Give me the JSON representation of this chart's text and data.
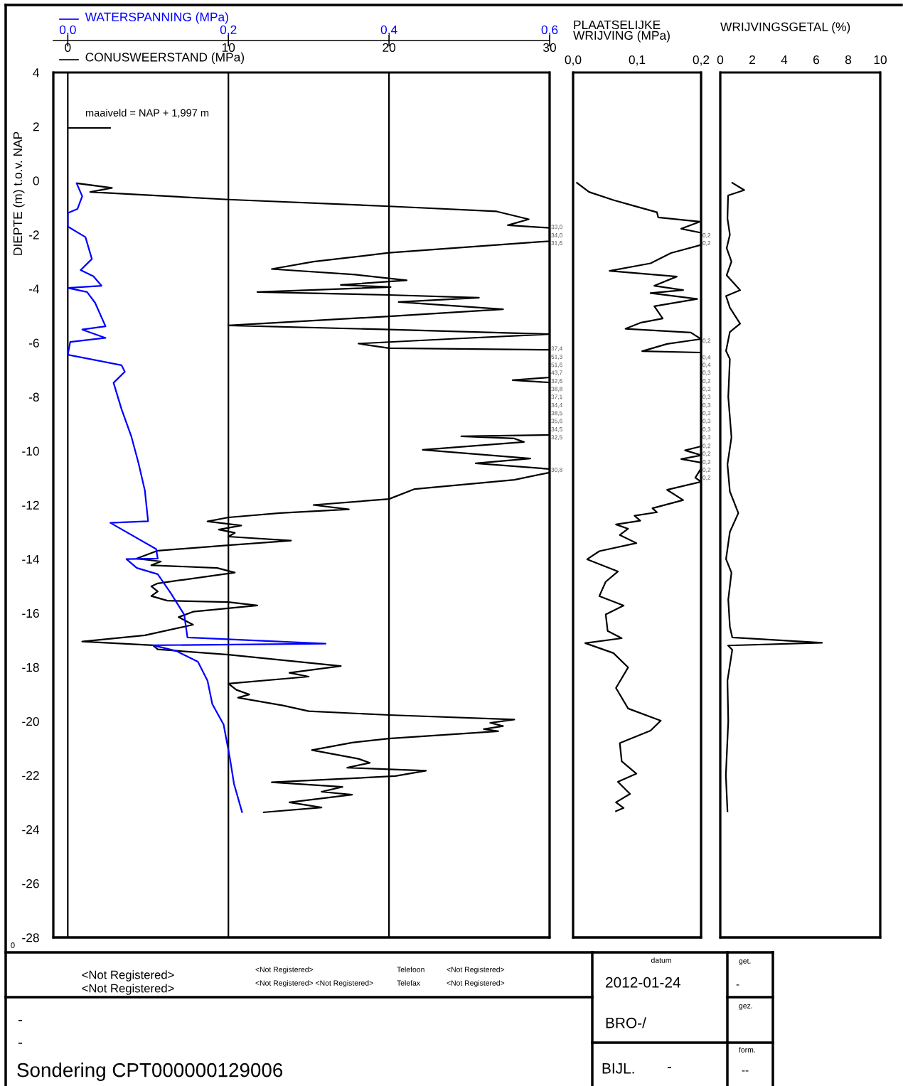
{
  "chart_data": [
    {
      "type": "line",
      "xlabel": "CONUSWEERSTAND (MPa)",
      "x2label": "WATERSPANNING (MPa)",
      "ylabel": "DIEPTE (m) t.o.v. NAP",
      "xlim": [
        -0.9,
        30
      ],
      "xticks": [
        0,
        10,
        20,
        30
      ],
      "x2lim": [
        -0.018,
        0.6
      ],
      "x2ticks": [
        {
          "value": 0,
          "label": "0,0"
        },
        {
          "value": 0.2,
          "label": "0,2"
        },
        {
          "value": 0.4,
          "label": "0,4"
        },
        {
          "value": 0.6,
          "label": "0,6"
        }
      ],
      "ylim": [
        -28,
        4
      ],
      "yticks": [
        4,
        2,
        0,
        -2,
        -4,
        -6,
        -8,
        -10,
        -12,
        -14,
        -16,
        -18,
        -20,
        -22,
        -24,
        -26,
        -28
      ],
      "grid": "x",
      "series": [
        {
          "color": "#000000",
          "x": [
            0.6,
            2.75,
            1.4,
            10,
            20,
            26.7,
            28.7,
            27.4,
            30,
            30,
            20,
            15.3,
            12.7,
            17.9,
            21.1,
            17.0,
            20.1,
            11.8,
            20,
            25.6,
            20.6,
            27.1,
            20,
            10,
            20,
            30,
            23.7,
            18.1,
            20,
            30,
            30,
            27.7,
            30,
            30,
            24.5,
            27.8,
            28.4,
            22.1,
            28.8,
            25.4,
            30,
            30,
            27.8,
            21.6,
            20,
            15.3,
            17.5,
            13.2,
            10,
            8.7,
            10.8,
            9.4,
            10.4,
            10,
            13.9,
            10,
            5.6,
            4.3,
            5.8,
            5.2,
            9.3,
            10.4,
            5.6,
            5.2,
            5.6,
            5.2,
            6.2,
            10,
            11.8,
            7.8,
            6.9,
            7.8,
            4.8,
            0.9,
            5.3,
            5.6,
            10,
            17.0,
            13.8,
            15.0,
            10,
            10.5,
            11.3,
            10.6,
            13.4,
            15.0,
            20,
            27.8,
            26.3,
            27.1,
            25.9,
            26.8,
            20,
            17.7,
            15.2,
            18.1,
            18.8,
            17.4,
            22.3,
            20.4,
            12.7,
            17.1,
            15.8,
            17.7,
            13.8,
            15.8,
            12.2
          ],
          "values": [
            -0.1,
            -0.27,
            -0.42,
            -0.7,
            -0.95,
            -1.14,
            -1.43,
            -1.65,
            -1.75,
            -2.24,
            -2.67,
            -3.0,
            -3.27,
            -3.48,
            -3.69,
            -3.86,
            -3.94,
            -4.12,
            -4.23,
            -4.33,
            -4.49,
            -4.76,
            -5.02,
            -5.36,
            -5.51,
            -5.68,
            -5.86,
            -6.03,
            -6.2,
            -6.26,
            -7.28,
            -7.38,
            -7.47,
            -9.41,
            -9.46,
            -9.54,
            -9.67,
            -9.96,
            -10.28,
            -10.46,
            -10.67,
            -10.8,
            -11.07,
            -11.41,
            -11.78,
            -12.0,
            -12.16,
            -12.3,
            -12.46,
            -12.61,
            -12.76,
            -12.91,
            -13.03,
            -13.17,
            -13.32,
            -13.49,
            -13.69,
            -13.98,
            -14.09,
            -14.23,
            -14.33,
            -14.5,
            -14.9,
            -15.01,
            -15.2,
            -15.37,
            -15.54,
            -15.59,
            -15.72,
            -15.95,
            -16.15,
            -16.43,
            -16.82,
            -17.05,
            -17.19,
            -17.34,
            -17.54,
            -17.96,
            -18.21,
            -18.35,
            -18.61,
            -18.84,
            -19.01,
            -19.13,
            -19.42,
            -19.63,
            -19.77,
            -19.94,
            -20.06,
            -20.18,
            -20.29,
            -20.37,
            -20.64,
            -20.79,
            -21.07,
            -21.39,
            -21.54,
            -21.72,
            -21.83,
            -22.03,
            -22.26,
            -22.43,
            -22.61,
            -22.72,
            -23.0,
            -23.19,
            -23.37
          ]
        },
        {
          "color": "#0000ff",
          "axis": "x2",
          "x": [
            0.011,
            0.018,
            0.012,
            0.0,
            0.0,
            0.022,
            0.03,
            0.016,
            0.032,
            0.042,
            0.0,
            0.024,
            0.034,
            0.047,
            0.018,
            0.047,
            0.003,
            0.0,
            0.067,
            0.071,
            0.057,
            0.067,
            0.079,
            0.088,
            0.096,
            0.1,
            0.053,
            0.11,
            0.112,
            0.073,
            0.086,
            0.112,
            0.128,
            0.145,
            0.149,
            0.321,
            0.106,
            0.135,
            0.162,
            0.174,
            0.18,
            0.194,
            0.202,
            0.207,
            0.217
          ],
          "values": [
            -0.1,
            -0.58,
            -1.05,
            -1.2,
            -1.7,
            -2.09,
            -2.9,
            -3.31,
            -3.54,
            -3.89,
            -3.97,
            -4.12,
            -4.52,
            -5.39,
            -5.51,
            -5.82,
            -5.97,
            -6.44,
            -6.83,
            -7.07,
            -7.48,
            -8.46,
            -9.45,
            -10.44,
            -11.47,
            -12.6,
            -12.66,
            -13.63,
            -13.98,
            -14.0,
            -14.33,
            -14.56,
            -15.25,
            -16.06,
            -16.9,
            -17.13,
            -17.19,
            -17.4,
            -17.8,
            -18.5,
            -19.37,
            -20.12,
            -21.39,
            -22.32,
            -23.36
          ]
        }
      ],
      "annotations": [
        "maaiveld = NAP + 1,997 m",
        "33,0",
        "34,0",
        "31,6",
        "37,4",
        "51,3",
        "51,6",
        "43,7",
        "32,6",
        "38,8",
        "37,1",
        "34,4",
        "38,5",
        "35,6",
        "34,5",
        "32,5",
        "30,8",
        "0",
        "<Not Registered>",
        "<Not Registered>",
        "<Not Registered>",
        "<Not Registered> <Not Registered>",
        "Telefoon",
        "Telefax",
        "<Not Registered>",
        "<Not Registered>",
        "datum",
        "2012-01-24",
        "get.",
        "-",
        "gez.",
        "BRO-/",
        "form.",
        "BIJL.",
        "-",
        "--",
        "-",
        "-",
        "Sondering CPT000000129006"
      ]
    },
    {
      "type": "line",
      "xlabel": "PLAATSELIJKE\nWRIJVING (MPa)",
      "xlim": [
        0,
        0.2
      ],
      "xticks": [
        {
          "value": 0,
          "label": "0,0"
        },
        {
          "value": 0.1,
          "label": "0,1"
        },
        {
          "value": 0.2,
          "label": "0,2"
        }
      ],
      "ylim": [
        -28,
        4
      ],
      "yticks": [
        4,
        2,
        0,
        -2,
        -4,
        -6,
        -8,
        -10,
        -12,
        -14,
        -16,
        -18,
        -20,
        -22,
        -24,
        -26,
        -28
      ],
      "tick_labels": "x",
      "series": [
        {
          "color": "#000000",
          "x": [
            0.006,
            0.025,
            0.063,
            0.096,
            0.131,
            0.133,
            0.198,
            0.169,
            0.2,
            0.2,
            0.153,
            0.121,
            0.057,
            0.162,
            0.127,
            0.172,
            0.121,
            0.194,
            0.127,
            0.14,
            0.105,
            0.082,
            0.184,
            0.2,
            0.147,
            0.108,
            0.2,
            0.2,
            0.2,
            0.175,
            0.2,
            0.169,
            0.2,
            0.2,
            0.191,
            0.2,
            0.147,
            0.172,
            0.124,
            0.131,
            0.096,
            0.105,
            0.067,
            0.086,
            0.073,
            0.099,
            0.041,
            0.022,
            0.07,
            0.051,
            0.041,
            0.079,
            0.051,
            0.054,
            0.076,
            0.019,
            0.063,
            0.086,
            0.067,
            0.086,
            0.137,
            0.121,
            0.073,
            0.076,
            0.099,
            0.07,
            0.089,
            0.067,
            0.079,
            0.067
          ],
          "values": [
            -0.08,
            -0.42,
            -0.72,
            -0.94,
            -1.17,
            -1.36,
            -1.52,
            -1.78,
            -1.93,
            -2.38,
            -2.68,
            -3.06,
            -3.34,
            -3.55,
            -3.89,
            -4.05,
            -4.16,
            -4.38,
            -4.65,
            -5.1,
            -5.26,
            -5.48,
            -5.62,
            -5.86,
            -6.04,
            -6.31,
            -6.36,
            -9.48,
            -9.83,
            -9.98,
            -10.16,
            -10.3,
            -10.43,
            -10.65,
            -10.99,
            -11.14,
            -11.44,
            -11.82,
            -12.12,
            -12.27,
            -12.4,
            -12.58,
            -12.72,
            -12.88,
            -13.11,
            -13.41,
            -13.71,
            -14.01,
            -14.46,
            -14.84,
            -15.37,
            -15.72,
            -16.05,
            -16.66,
            -16.93,
            -17.11,
            -17.48,
            -18.01,
            -18.77,
            -19.53,
            -19.98,
            -20.35,
            -20.81,
            -21.48,
            -21.94,
            -22.24,
            -22.69,
            -23.0,
            -23.21,
            -23.33
          ]
        }
      ],
      "annotations": [
        "0,2",
        "0,2",
        "0,2",
        "0,4",
        "0,4",
        "0,3",
        "0,2",
        "0,3",
        "0,3",
        "0,3",
        "0,3",
        "0,3",
        "0,3",
        "0,3",
        "0,2",
        "0,2",
        "0,2",
        "0,2",
        "0,2"
      ]
    },
    {
      "type": "line",
      "xlabel": "WRIJVINGSGETAL (%)",
      "xlim": [
        0,
        10
      ],
      "xticks": [
        0,
        2,
        4,
        6,
        8,
        10
      ],
      "ylim": [
        -28,
        4
      ],
      "yticks": [
        4,
        2,
        0,
        -2,
        -4,
        -6,
        -8,
        -10,
        -12,
        -14,
        -16,
        -18,
        -20,
        -22,
        -24,
        -26,
        -28
      ],
      "tick_labels": "x",
      "series": [
        {
          "color": "#000000",
          "x": [
            0.75,
            1.5,
            0.49,
            0.45,
            0.6,
            0.4,
            0.7,
            0.4,
            1.24,
            0.36,
            0.6,
            1.24,
            0.6,
            0.36,
            0.6,
            0.5,
            0.7,
            0.45,
            0.6,
            1.13,
            0.6,
            0.36,
            0.7,
            0.5,
            0.6,
            0.75,
            6.36,
            0.49,
            0.75,
            0.45,
            0.5,
            0.35,
            0.45
          ],
          "values": [
            -0.08,
            -0.35,
            -0.55,
            -1.4,
            -2.0,
            -2.5,
            -3.0,
            -3.5,
            -4.05,
            -4.27,
            -4.7,
            -5.29,
            -5.6,
            -6.3,
            -6.6,
            -8.0,
            -9.5,
            -10.5,
            -11.5,
            -12.3,
            -13.0,
            -14.0,
            -14.5,
            -15.5,
            -16.5,
            -16.9,
            -17.1,
            -17.2,
            -17.36,
            -18.5,
            -20.0,
            -22.0,
            -23.33
          ]
        }
      ]
    }
  ]
}
